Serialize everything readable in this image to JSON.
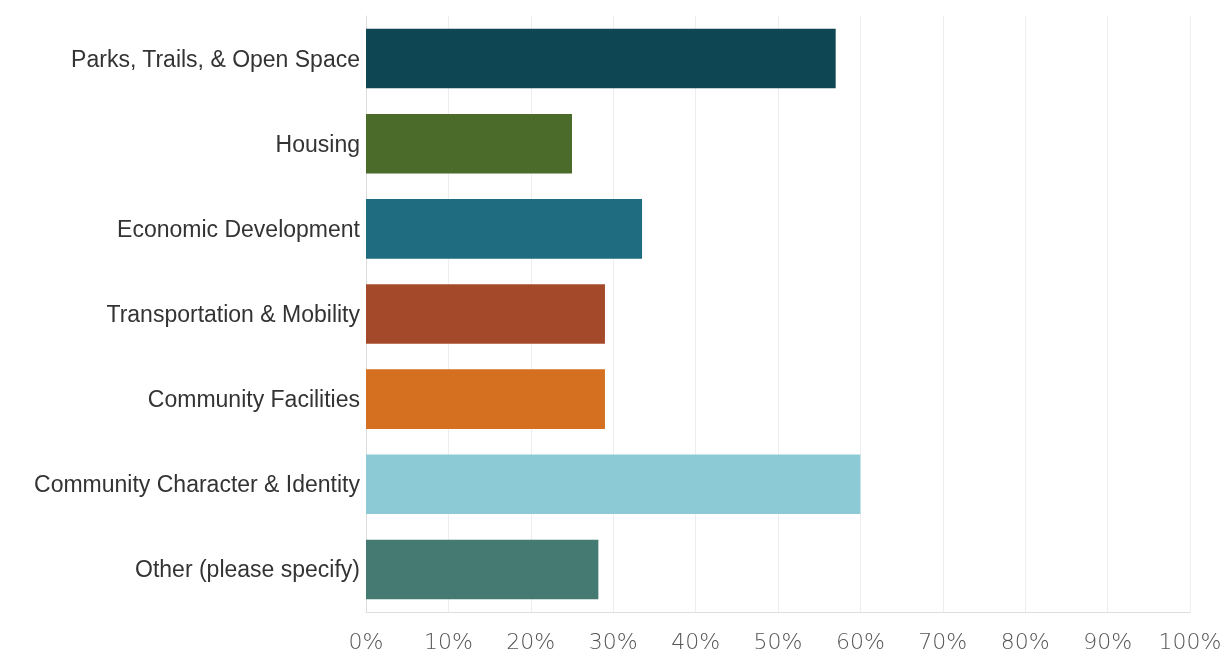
{
  "chart_data": {
    "type": "bar",
    "orientation": "horizontal",
    "categories": [
      "Parks, Trails, & Open Space",
      "Housing",
      "Economic Development",
      "Transportation & Mobility",
      "Community Facilities",
      "Community Character & Identity",
      "Other (please specify)"
    ],
    "values": [
      57,
      25,
      33.5,
      29,
      29,
      60,
      28.2
    ],
    "colors": [
      "#0e4653",
      "#4a6b2a",
      "#1f6b80",
      "#a44a2a",
      "#d4701f",
      "#8ccbd5",
      "#447a72"
    ],
    "xlim": [
      0,
      100
    ],
    "xticks": [
      {
        "value": 0,
        "label": "0%"
      },
      {
        "value": 10,
        "label": "10%"
      },
      {
        "value": 20,
        "label": "20%"
      },
      {
        "value": 30,
        "label": "30%"
      },
      {
        "value": 40,
        "label": "40%"
      },
      {
        "value": 50,
        "label": "50%"
      },
      {
        "value": 60,
        "label": "60%"
      },
      {
        "value": 70,
        "label": "70%"
      },
      {
        "value": 80,
        "label": "80%"
      },
      {
        "value": 90,
        "label": "90%"
      },
      {
        "value": 100,
        "label": "100%"
      }
    ],
    "grid": "x"
  }
}
